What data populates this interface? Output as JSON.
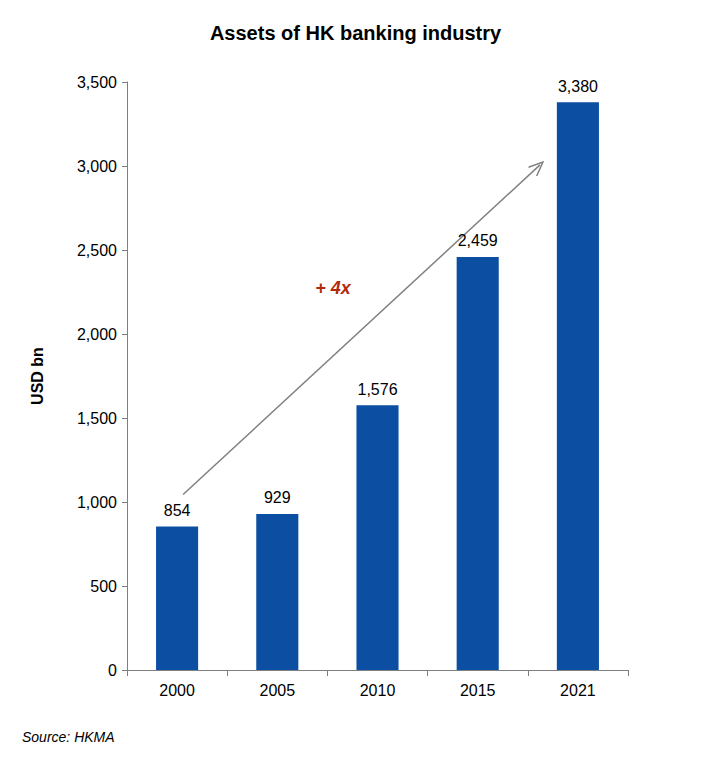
{
  "chart_data": {
    "type": "bar",
    "title": "Assets of HK banking industry",
    "y_label": "USD bn",
    "categories": [
      "2000",
      "2005",
      "2010",
      "2015",
      "2021"
    ],
    "values": [
      854,
      929,
      1576,
      2459,
      3380
    ],
    "value_labels": [
      "854",
      "929",
      "1,576",
      "2,459",
      "3,380"
    ],
    "color": "#0b4ea2",
    "ylim": [
      0,
      3500
    ],
    "yticks": [
      0,
      500,
      {
        "value": 1000,
        "label": "1,000"
      },
      {
        "value": 1500,
        "label": "1,500"
      },
      {
        "value": 2000,
        "label": "2,000"
      },
      {
        "value": 2500,
        "label": "2,500"
      },
      {
        "value": 3000,
        "label": "3,000"
      },
      {
        "value": 3500,
        "label": "3,500"
      }
    ],
    "grid": false,
    "data_labels": true,
    "annotations": [
      "+ 4x"
    ],
    "source": "Source: HKMA"
  }
}
